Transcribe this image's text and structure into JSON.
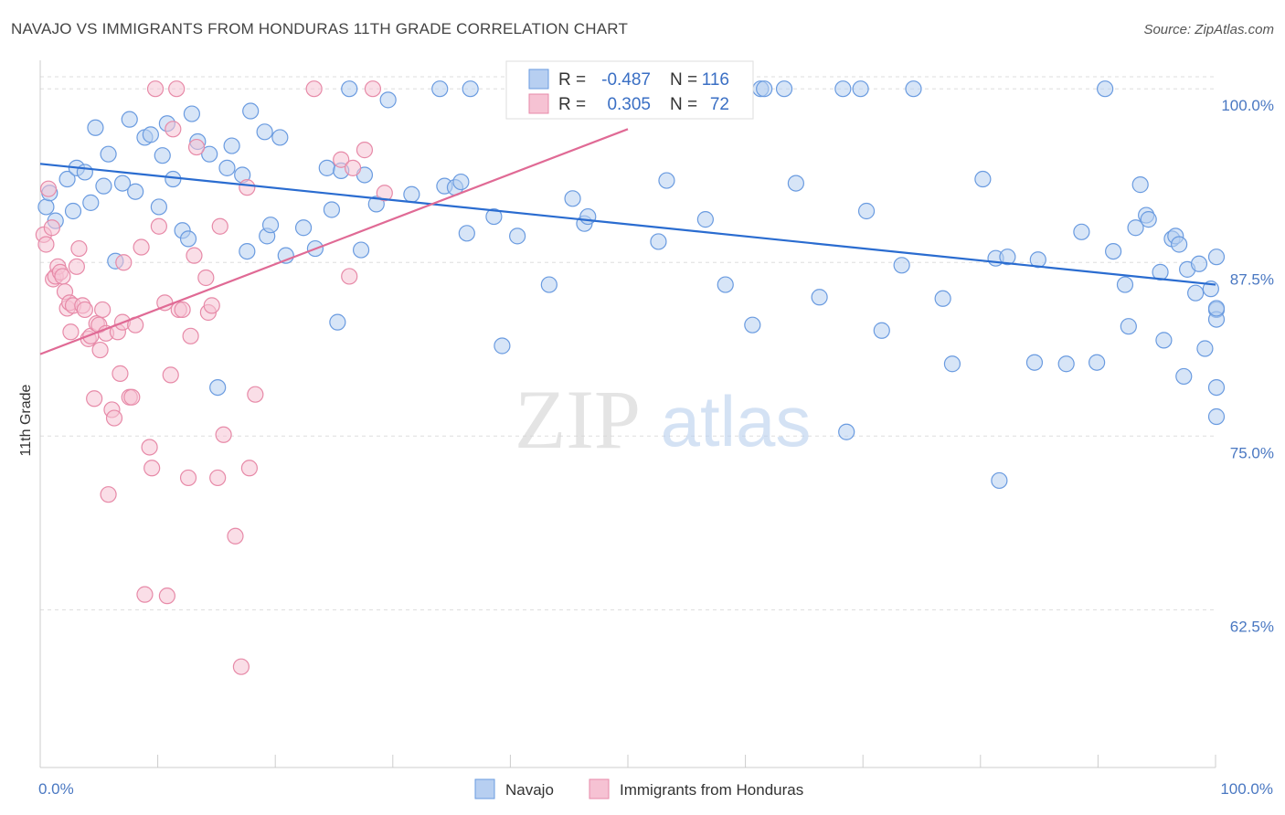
{
  "title": "NAVAJO VS IMMIGRANTS FROM HONDURAS 11TH GRADE CORRELATION CHART",
  "source": "Source: ZipAtlas.com",
  "watermark": {
    "zip": "ZIP",
    "atlas": "atlas"
  },
  "legend": {
    "rows": [
      {
        "r_label": "R =",
        "r_value": "-0.487",
        "n_label": "N =",
        "n_value": "116"
      },
      {
        "r_label": "R =",
        "r_value": "0.305",
        "n_label": "N =",
        "n_value": "72"
      }
    ]
  },
  "chart_data": {
    "type": "scatter",
    "xlabel": "",
    "ylabel": "11th Grade",
    "xlim": [
      0,
      100
    ],
    "ylim": [
      52,
      101
    ],
    "x_tick_labels": [
      "0.0%",
      "100.0%"
    ],
    "y_ticks": [
      {
        "value": 100.0,
        "label": "100.0%"
      },
      {
        "value": 87.5,
        "label": "87.5%"
      },
      {
        "value": 75.0,
        "label": "75.0%"
      },
      {
        "value": 62.5,
        "label": "62.5%"
      }
    ],
    "grid": "horizontal dashed",
    "legend_position": "bottom-center",
    "series": [
      {
        "name": "Navajo",
        "color": "#6a9be0",
        "fill": "#b7cff1",
        "trend": {
          "x0": 0,
          "y0": 94.6,
          "x1": 100,
          "y1": 85.9,
          "color": "#2a6cd0"
        },
        "points": [
          [
            0.5,
            91.5
          ],
          [
            0.8,
            92.5
          ],
          [
            1.3,
            90.5
          ],
          [
            2.3,
            93.5
          ],
          [
            3.1,
            94.3
          ],
          [
            2.8,
            91.2
          ],
          [
            3.8,
            94.0
          ],
          [
            4.3,
            91.8
          ],
          [
            4.7,
            97.2
          ],
          [
            5.8,
            95.3
          ],
          [
            5.4,
            93.0
          ],
          [
            6.4,
            87.6
          ],
          [
            7.0,
            93.2
          ],
          [
            7.6,
            97.8
          ],
          [
            8.1,
            92.6
          ],
          [
            8.9,
            96.5
          ],
          [
            9.4,
            96.7
          ],
          [
            10.1,
            91.5
          ],
          [
            10.4,
            95.2
          ],
          [
            10.8,
            97.5
          ],
          [
            11.3,
            93.5
          ],
          [
            12.1,
            89.8
          ],
          [
            12.6,
            89.2
          ],
          [
            12.9,
            98.2
          ],
          [
            13.4,
            96.2
          ],
          [
            14.4,
            95.3
          ],
          [
            15.1,
            78.5
          ],
          [
            15.9,
            94.3
          ],
          [
            16.3,
            95.9
          ],
          [
            17.2,
            93.8
          ],
          [
            17.6,
            88.3
          ],
          [
            17.9,
            98.4
          ],
          [
            19.1,
            96.9
          ],
          [
            19.3,
            89.4
          ],
          [
            19.6,
            90.2
          ],
          [
            20.4,
            96.5
          ],
          [
            20.9,
            88.0
          ],
          [
            22.4,
            90.0
          ],
          [
            23.4,
            88.5
          ],
          [
            24.4,
            94.3
          ],
          [
            24.8,
            91.3
          ],
          [
            25.3,
            83.2
          ],
          [
            25.6,
            94.1
          ],
          [
            26.3,
            100.0
          ],
          [
            27.6,
            93.8
          ],
          [
            27.3,
            88.4
          ],
          [
            28.6,
            91.7
          ],
          [
            29.6,
            99.2
          ],
          [
            31.6,
            92.4
          ],
          [
            34.0,
            100.0
          ],
          [
            34.4,
            93.0
          ],
          [
            35.3,
            92.9
          ],
          [
            35.8,
            93.3
          ],
          [
            36.3,
            89.6
          ],
          [
            36.6,
            100.0
          ],
          [
            38.6,
            90.8
          ],
          [
            39.3,
            81.5
          ],
          [
            40.6,
            89.4
          ],
          [
            43.3,
            85.9
          ],
          [
            45.3,
            92.1
          ],
          [
            46.3,
            90.3
          ],
          [
            46.6,
            90.8
          ],
          [
            52.6,
            89.0
          ],
          [
            52.9,
            100.0
          ],
          [
            53.3,
            93.4
          ],
          [
            56.6,
            90.6
          ],
          [
            58.3,
            85.9
          ],
          [
            60.6,
            83.0
          ],
          [
            61.3,
            100.0
          ],
          [
            61.6,
            100.0
          ],
          [
            63.3,
            100.0
          ],
          [
            64.3,
            93.2
          ],
          [
            66.3,
            85.0
          ],
          [
            68.3,
            100.0
          ],
          [
            68.6,
            75.3
          ],
          [
            69.8,
            100.0
          ],
          [
            70.3,
            91.2
          ],
          [
            71.6,
            82.6
          ],
          [
            73.3,
            87.3
          ],
          [
            74.3,
            100.0
          ],
          [
            76.8,
            84.9
          ],
          [
            77.6,
            80.2
          ],
          [
            80.2,
            93.5
          ],
          [
            81.3,
            87.8
          ],
          [
            81.6,
            71.8
          ],
          [
            82.3,
            87.9
          ],
          [
            84.6,
            80.3
          ],
          [
            84.9,
            87.7
          ],
          [
            87.3,
            80.2
          ],
          [
            88.6,
            89.7
          ],
          [
            89.9,
            80.3
          ],
          [
            90.6,
            100.0
          ],
          [
            91.3,
            88.3
          ],
          [
            92.3,
            85.9
          ],
          [
            92.6,
            82.9
          ],
          [
            93.2,
            90.0
          ],
          [
            93.6,
            93.1
          ],
          [
            94.1,
            90.9
          ],
          [
            94.3,
            90.6
          ],
          [
            95.3,
            86.8
          ],
          [
            95.6,
            81.9
          ],
          [
            96.3,
            89.2
          ],
          [
            96.6,
            89.4
          ],
          [
            96.9,
            88.8
          ],
          [
            97.3,
            79.3
          ],
          [
            97.6,
            87.0
          ],
          [
            98.3,
            85.3
          ],
          [
            98.6,
            87.4
          ],
          [
            99.1,
            81.3
          ],
          [
            99.6,
            85.6
          ],
          [
            100.3,
            78.5
          ],
          [
            100.6,
            76.4
          ],
          [
            101.6,
            84.1
          ],
          [
            102.1,
            87.9
          ],
          [
            102.6,
            83.4
          ],
          [
            103.1,
            84.2
          ]
        ]
      },
      {
        "name": "Immigrants from Honduras",
        "color": "#e78aa8",
        "fill": "#f6c2d3",
        "trend": {
          "x0": 0,
          "y0": 80.9,
          "x1": 50,
          "y1": 97.1,
          "color": "#e06a95"
        },
        "points": [
          [
            0.3,
            89.5
          ],
          [
            0.5,
            88.8
          ],
          [
            0.7,
            92.8
          ],
          [
            1.0,
            90.0
          ],
          [
            1.1,
            86.3
          ],
          [
            1.3,
            86.5
          ],
          [
            1.5,
            87.2
          ],
          [
            1.7,
            86.8
          ],
          [
            1.9,
            86.5
          ],
          [
            2.1,
            85.4
          ],
          [
            2.3,
            84.2
          ],
          [
            2.5,
            84.6
          ],
          [
            2.6,
            82.5
          ],
          [
            2.8,
            84.4
          ],
          [
            3.1,
            87.2
          ],
          [
            3.3,
            88.5
          ],
          [
            3.6,
            84.4
          ],
          [
            3.8,
            84.1
          ],
          [
            4.1,
            82.0
          ],
          [
            4.3,
            82.2
          ],
          [
            4.6,
            77.7
          ],
          [
            4.8,
            83.1
          ],
          [
            5.0,
            83.0
          ],
          [
            5.1,
            81.2
          ],
          [
            5.3,
            84.1
          ],
          [
            5.6,
            82.4
          ],
          [
            5.8,
            70.8
          ],
          [
            6.1,
            76.9
          ],
          [
            6.3,
            76.3
          ],
          [
            6.6,
            82.5
          ],
          [
            6.8,
            79.5
          ],
          [
            7.0,
            83.2
          ],
          [
            7.1,
            87.5
          ],
          [
            7.6,
            77.8
          ],
          [
            7.8,
            77.8
          ],
          [
            8.1,
            83.0
          ],
          [
            8.6,
            88.6
          ],
          [
            8.9,
            63.6
          ],
          [
            9.3,
            74.2
          ],
          [
            9.5,
            72.7
          ],
          [
            9.8,
            100.0
          ],
          [
            10.1,
            90.1
          ],
          [
            10.6,
            84.6
          ],
          [
            10.8,
            63.5
          ],
          [
            11.1,
            79.4
          ],
          [
            11.3,
            97.1
          ],
          [
            11.6,
            100.0
          ],
          [
            11.8,
            84.1
          ],
          [
            12.1,
            84.1
          ],
          [
            12.6,
            72.0
          ],
          [
            12.8,
            82.2
          ],
          [
            13.1,
            88.0
          ],
          [
            13.3,
            95.8
          ],
          [
            14.1,
            86.4
          ],
          [
            14.3,
            83.9
          ],
          [
            14.6,
            84.4
          ],
          [
            15.1,
            72.0
          ],
          [
            15.3,
            90.1
          ],
          [
            15.6,
            75.1
          ],
          [
            16.6,
            67.8
          ],
          [
            17.1,
            58.4
          ],
          [
            17.6,
            92.9
          ],
          [
            17.8,
            72.7
          ],
          [
            18.3,
            78.0
          ],
          [
            23.3,
            100.0
          ],
          [
            25.6,
            94.9
          ],
          [
            26.3,
            86.5
          ],
          [
            26.6,
            94.3
          ],
          [
            27.6,
            95.6
          ],
          [
            28.3,
            100.0
          ],
          [
            29.3,
            92.5
          ],
          [
            40.6,
            100.0
          ]
        ]
      }
    ]
  }
}
